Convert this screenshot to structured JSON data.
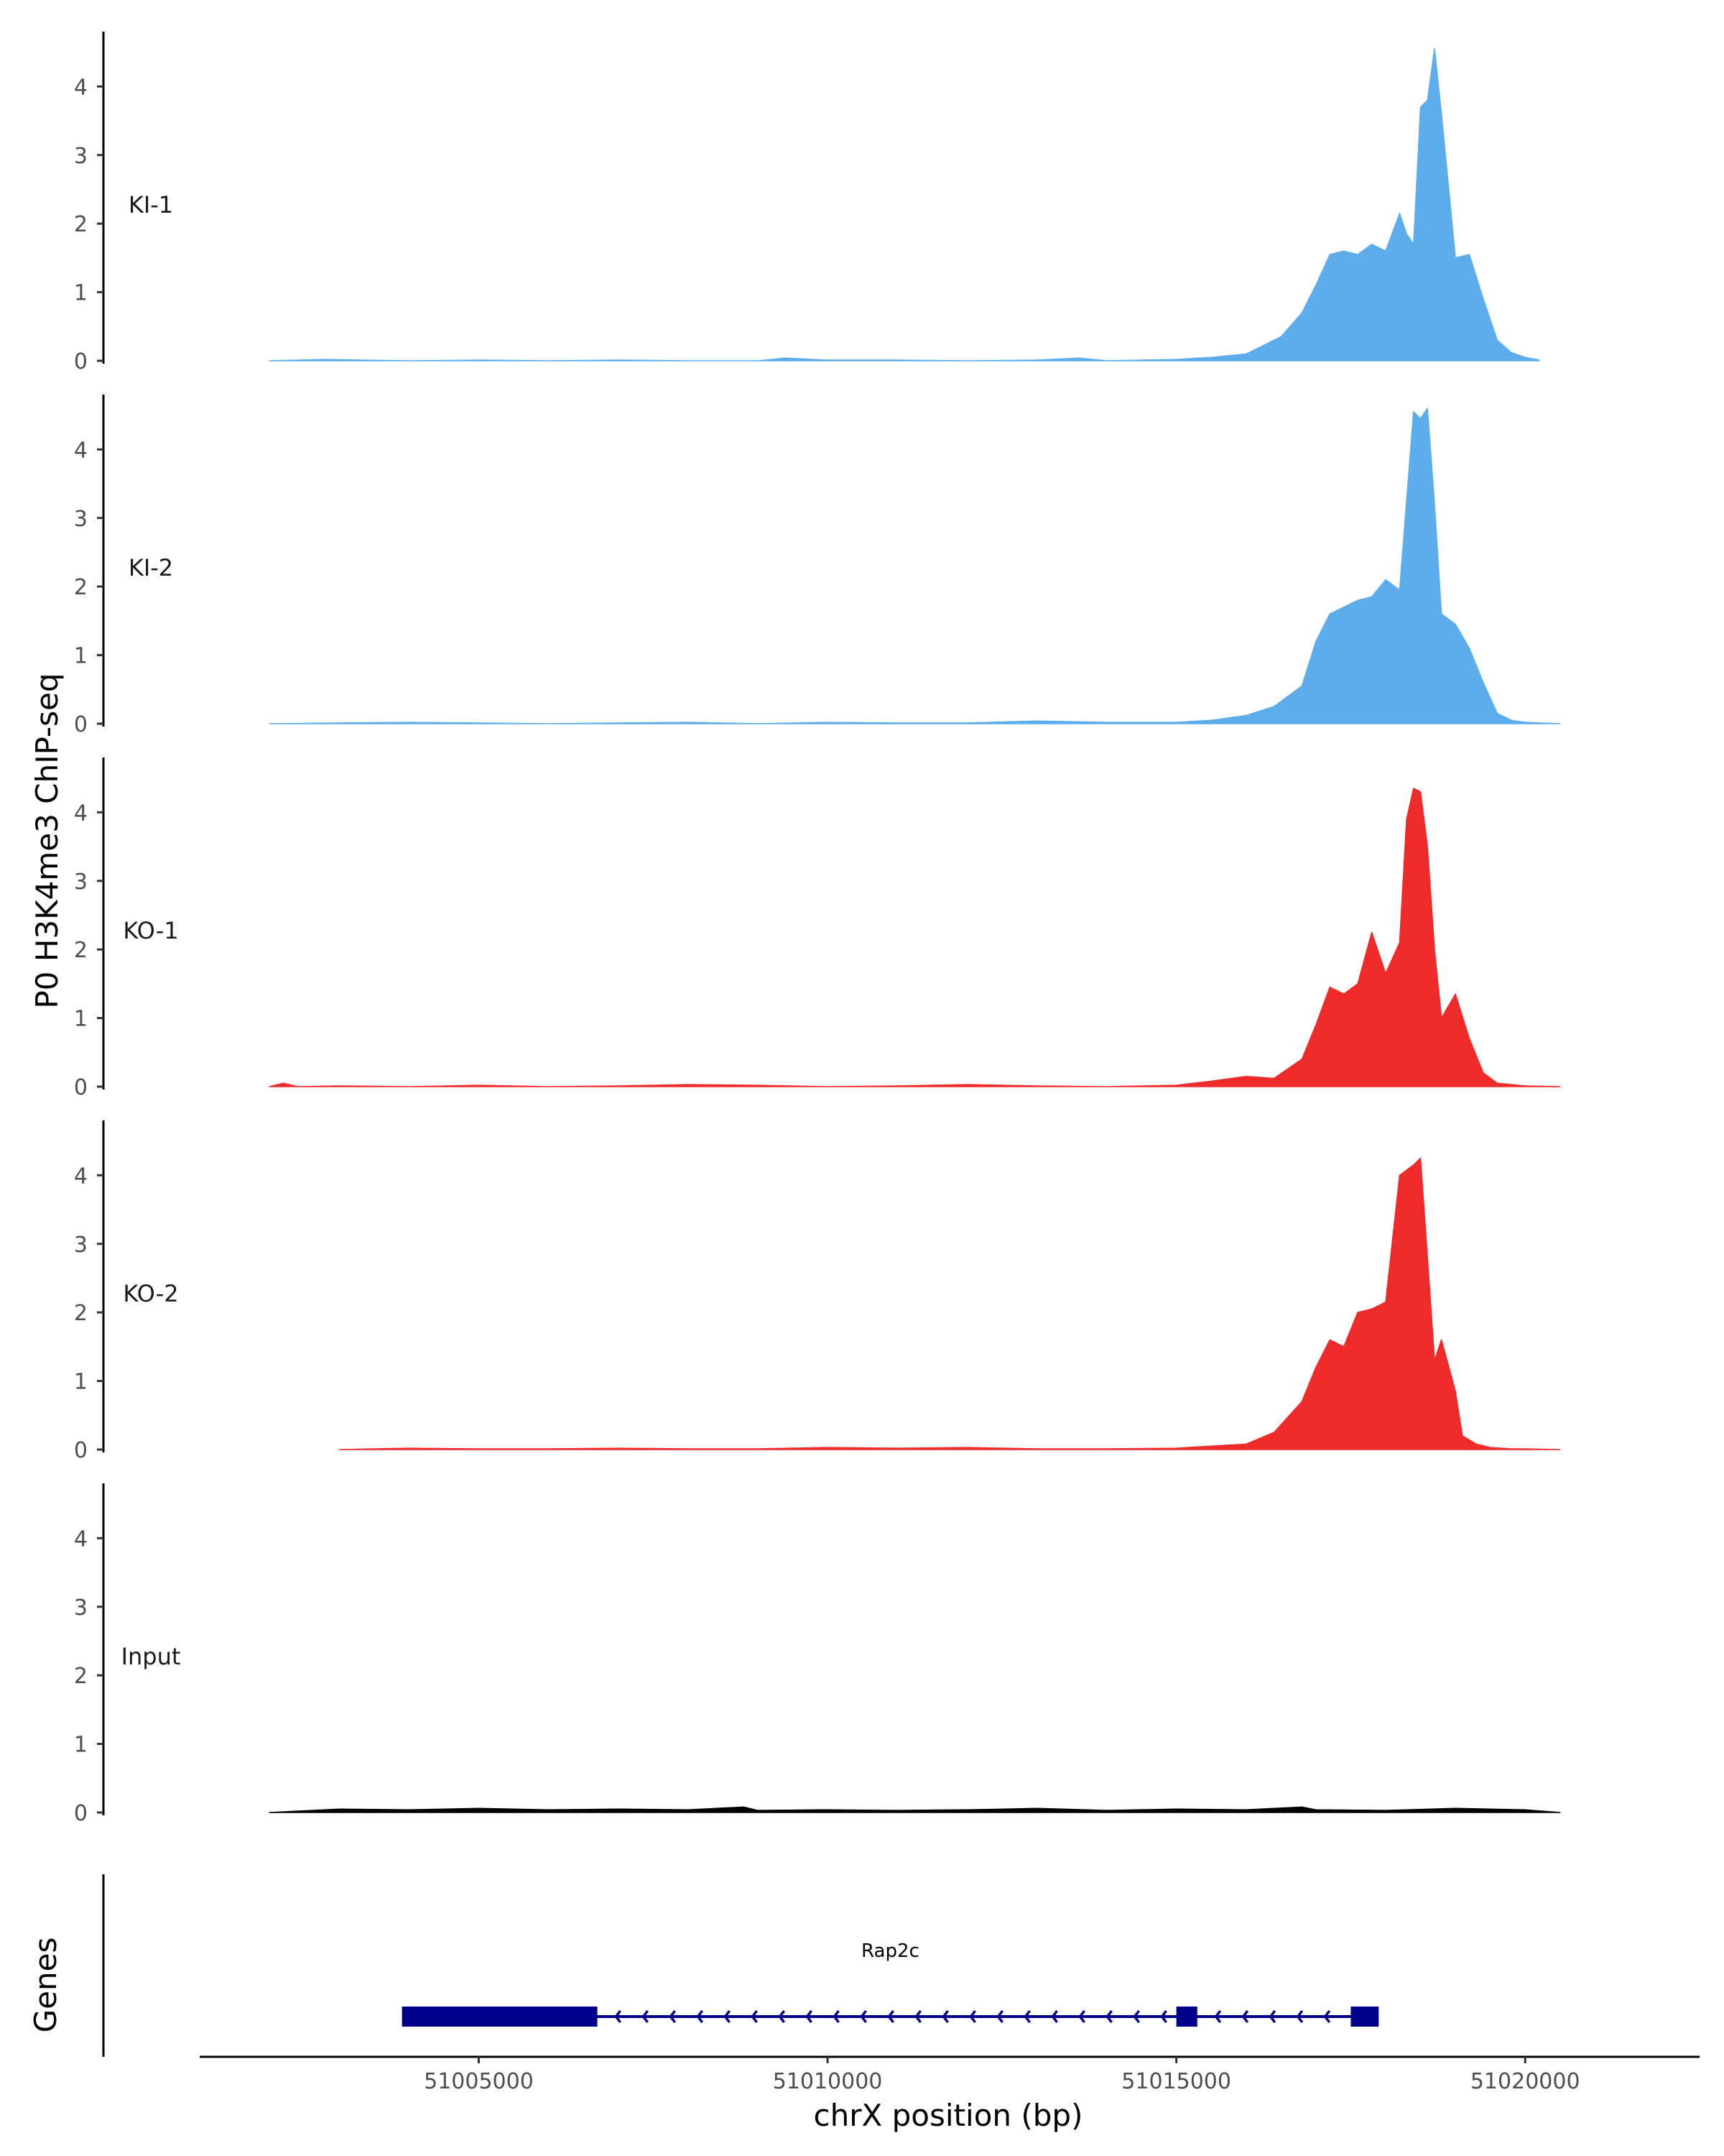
{
  "chart_data": {
    "type": "area",
    "ylabel": "P0 H3K4me3 ChIP-seq",
    "xlabel": "chrX position (bp)",
    "genes_track_label": "Genes",
    "xlim": [
      51001000,
      51022500
    ],
    "ylim": [
      0,
      4.8
    ],
    "y_ticks": [
      0,
      1,
      2,
      3,
      4
    ],
    "x_ticks": [
      51005000,
      51010000,
      51015000,
      51020000
    ],
    "grid": false,
    "tracks": [
      {
        "name": "KI-1",
        "color": "#5DADEC",
        "range": [
          51002000,
          51020200
        ],
        "x": [
          51002000,
          51002800,
          51003300,
          51004000,
          51005000,
          51006000,
          51007000,
          51008000,
          51009000,
          51009400,
          51010000,
          51011000,
          51012000,
          51013000,
          51013600,
          51014000,
          51015000,
          51015500,
          51016000,
          51016200,
          51016500,
          51016800,
          51017000,
          51017200,
          51017400,
          51017600,
          51017800,
          51018000,
          51018200,
          51018300,
          51018400,
          51018500,
          51018600,
          51018700,
          51018800,
          51019000,
          51019200,
          51019400,
          51019600,
          51019800,
          51020000,
          51020200
        ],
        "y": [
          0,
          0.02,
          0.01,
          0,
          0.01,
          0,
          0.01,
          0,
          0,
          0.04,
          0.01,
          0.01,
          0,
          0.01,
          0.04,
          0,
          0.02,
          0.05,
          0.1,
          0.2,
          0.35,
          0.7,
          1.1,
          1.55,
          1.6,
          1.55,
          1.7,
          1.6,
          2.15,
          1.85,
          1.7,
          3.7,
          3.8,
          4.55,
          3.6,
          1.5,
          1.55,
          0.9,
          0.3,
          0.12,
          0.05,
          0.01
        ]
      },
      {
        "name": "KI-2",
        "color": "#5DADEC",
        "range": [
          51002000,
          51020500
        ],
        "x": [
          51002000,
          51003000,
          51004000,
          51005000,
          51006000,
          51007000,
          51008000,
          51009000,
          51010000,
          51011000,
          51012000,
          51013000,
          51014000,
          51015000,
          51015500,
          51016000,
          51016400,
          51016800,
          51017000,
          51017200,
          51017400,
          51017600,
          51017800,
          51018000,
          51018200,
          51018400,
          51018500,
          51018600,
          51018700,
          51018800,
          51019000,
          51019200,
          51019400,
          51019600,
          51019800,
          51020000,
          51020500
        ],
        "y": [
          0,
          0.01,
          0.02,
          0.01,
          0,
          0.01,
          0.02,
          0,
          0.02,
          0.01,
          0.01,
          0.04,
          0.02,
          0.02,
          0.05,
          0.12,
          0.25,
          0.55,
          1.2,
          1.6,
          1.7,
          1.8,
          1.85,
          2.1,
          1.95,
          4.55,
          4.45,
          4.6,
          3.2,
          1.6,
          1.45,
          1.1,
          0.6,
          0.15,
          0.05,
          0.02,
          0
        ]
      },
      {
        "name": "KO-1",
        "color": "#EE2A2A",
        "range": [
          51002000,
          51020500
        ],
        "x": [
          51002000,
          51002200,
          51002400,
          51003000,
          51004000,
          51005000,
          51006000,
          51007000,
          51008000,
          51009000,
          51010000,
          51011000,
          51012000,
          51013000,
          51014000,
          51015000,
          51015500,
          51016000,
          51016400,
          51016800,
          51017000,
          51017200,
          51017400,
          51017600,
          51017800,
          51018000,
          51018200,
          51018300,
          51018400,
          51018500,
          51018600,
          51018700,
          51018800,
          51019000,
          51019200,
          51019400,
          51019600,
          51020000,
          51020500
        ],
        "y": [
          0,
          0.05,
          0,
          0.01,
          0,
          0.02,
          0,
          0.01,
          0.03,
          0.02,
          0,
          0.01,
          0.03,
          0.01,
          0,
          0.02,
          0.08,
          0.15,
          0.12,
          0.4,
          0.9,
          1.45,
          1.35,
          1.5,
          2.25,
          1.65,
          2.1,
          3.9,
          4.35,
          4.3,
          3.5,
          2.0,
          1.0,
          1.35,
          0.7,
          0.2,
          0.05,
          0.01,
          0
        ]
      },
      {
        "name": "KO-2",
        "color": "#EE2A2A",
        "range": [
          51003000,
          51020500
        ],
        "x": [
          51003000,
          51004000,
          51005000,
          51006000,
          51007000,
          51008000,
          51009000,
          51010000,
          51011000,
          51012000,
          51013000,
          51014000,
          51015000,
          51015500,
          51016000,
          51016400,
          51016800,
          51017000,
          51017200,
          51017400,
          51017600,
          51017800,
          51018000,
          51018200,
          51018400,
          51018500,
          51018600,
          51018700,
          51018800,
          51019000,
          51019100,
          51019300,
          51019500,
          51019800,
          51020000,
          51020500
        ],
        "y": [
          0,
          0.02,
          0.01,
          0.01,
          0.02,
          0.01,
          0.01,
          0.03,
          0.02,
          0.03,
          0.01,
          0.01,
          0.02,
          0.05,
          0.08,
          0.25,
          0.7,
          1.2,
          1.6,
          1.5,
          2.0,
          2.05,
          2.15,
          4.0,
          4.15,
          4.25,
          2.8,
          1.3,
          1.6,
          0.85,
          0.2,
          0.08,
          0.03,
          0.01,
          0.01,
          0
        ]
      },
      {
        "name": "Input",
        "color": "#000000",
        "range": [
          51002000,
          51020500
        ],
        "x": [
          51002000,
          51003000,
          51004000,
          51005000,
          51006000,
          51007000,
          51008000,
          51008800,
          51009000,
          51010000,
          51011000,
          51012000,
          51013000,
          51014000,
          51015000,
          51016000,
          51016800,
          51017000,
          51018000,
          51019000,
          51020000,
          51020500
        ],
        "y": [
          0,
          0.05,
          0.04,
          0.06,
          0.04,
          0.05,
          0.04,
          0.08,
          0.03,
          0.04,
          0.03,
          0.04,
          0.06,
          0.03,
          0.05,
          0.04,
          0.08,
          0.04,
          0.03,
          0.06,
          0.04,
          0
        ]
      }
    ],
    "gene": {
      "name": "Rap2c",
      "strand": "-",
      "color": "#00008B",
      "start": 51003900,
      "end": 51017900,
      "exons": [
        {
          "start": 51003900,
          "end": 51006700,
          "kind": "thick"
        },
        {
          "start": 51015000,
          "end": 51015300,
          "kind": "thick"
        },
        {
          "start": 51017500,
          "end": 51017900,
          "kind": "thick"
        }
      ]
    }
  }
}
